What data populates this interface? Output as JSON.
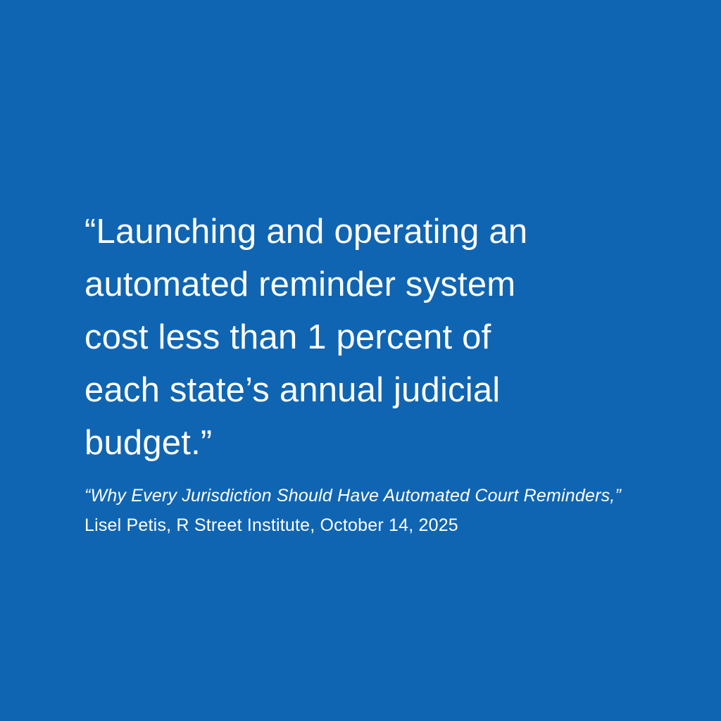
{
  "page": {
    "background_color": "#1065b2",
    "text_color": "#ffffff"
  },
  "quote": {
    "full_text": "“Launching and operating an automated reminder system cost less than 1 percent of each state’s annual judicial budget.”",
    "lines": [
      "“Launching and operating an",
      "automated reminder system",
      "cost less than 1 percent of",
      "each state’s annual judicial",
      "budget.”"
    ]
  },
  "attribution": {
    "source_title": "“Why Every Jurisdiction Should Have Automated Court Reminders,”",
    "author_line": "Lisel Petis, R Street Institute, October 14, 2025"
  }
}
